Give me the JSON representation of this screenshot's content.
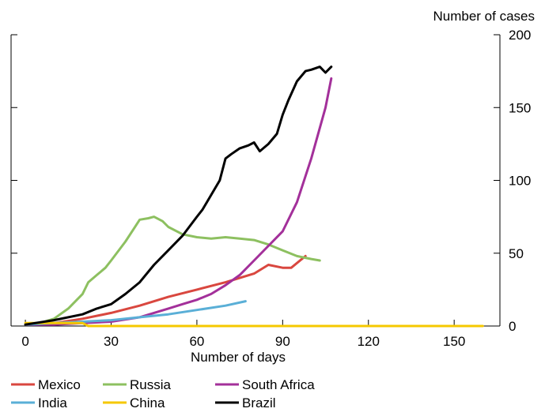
{
  "chart_data": {
    "type": "line",
    "xlabel": "Number of days",
    "ylabel": "Number of cases",
    "xlim": [
      -5,
      166
    ],
    "ylim": [
      0,
      200
    ],
    "xticks": [
      0,
      30,
      60,
      90,
      120,
      150
    ],
    "yticks": [
      0,
      50,
      100,
      150,
      200
    ],
    "y_axis_side": "right",
    "legend_position": "bottom",
    "series": [
      {
        "name": "Mexico",
        "color": "#d9473f",
        "x": [
          0,
          10,
          20,
          30,
          40,
          50,
          60,
          70,
          80,
          85,
          90,
          93,
          98
        ],
        "y": [
          1,
          2,
          5,
          9,
          14,
          20,
          25,
          30,
          36,
          42,
          40,
          40,
          48
        ]
      },
      {
        "name": "Russia",
        "color": "#8dc060",
        "x": [
          0,
          5,
          10,
          15,
          20,
          22,
          25,
          28,
          30,
          35,
          38,
          40,
          43,
          45,
          48,
          50,
          55,
          60,
          65,
          70,
          75,
          80,
          85,
          90,
          95,
          100,
          103
        ],
        "y": [
          1,
          2,
          5,
          12,
          22,
          30,
          35,
          40,
          45,
          58,
          67,
          73,
          74,
          75,
          72,
          68,
          63,
          61,
          60,
          61,
          60,
          59,
          56,
          52,
          48,
          46,
          45
        ]
      },
      {
        "name": "South Africa",
        "color": "#a3309a",
        "x": [
          0,
          10,
          20,
          30,
          40,
          50,
          55,
          60,
          65,
          70,
          75,
          80,
          85,
          90,
          95,
          100,
          105,
          107
        ],
        "y": [
          1,
          1,
          2,
          3,
          6,
          12,
          15,
          18,
          22,
          28,
          35,
          45,
          55,
          65,
          85,
          115,
          150,
          170
        ]
      },
      {
        "name": "India",
        "color": "#5aafd7",
        "x": [
          0,
          10,
          20,
          30,
          40,
          50,
          60,
          70,
          77
        ],
        "y": [
          1,
          2,
          3,
          4,
          6,
          8,
          11,
          14,
          17
        ]
      },
      {
        "name": "China",
        "color": "#f5c800",
        "x": [
          0,
          20,
          22,
          160
        ],
        "y": [
          2,
          2,
          0,
          0
        ]
      },
      {
        "name": "Brazil",
        "color": "#000000",
        "x": [
          0,
          10,
          20,
          25,
          30,
          35,
          40,
          45,
          50,
          55,
          60,
          62,
          65,
          68,
          70,
          72,
          75,
          78,
          80,
          82,
          85,
          88,
          90,
          92,
          95,
          98,
          100,
          103,
          105,
          107
        ],
        "y": [
          1,
          4,
          8,
          12,
          15,
          22,
          30,
          42,
          52,
          62,
          75,
          80,
          90,
          100,
          115,
          118,
          122,
          124,
          126,
          120,
          125,
          132,
          145,
          155,
          168,
          175,
          176,
          178,
          174,
          178
        ]
      }
    ]
  }
}
